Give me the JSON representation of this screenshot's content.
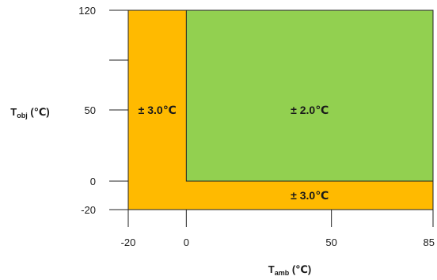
{
  "chart_data": {
    "type": "heatmap",
    "title": "",
    "xlabel": {
      "main": "T",
      "sub": "amb",
      "unit": " (℃)"
    },
    "ylabel": {
      "main": "T",
      "sub": "obj",
      "unit": " (℃)"
    },
    "xlim": [
      -20,
      85
    ],
    "ylim": [
      -20,
      120
    ],
    "xticks": [
      -20,
      0,
      50,
      85
    ],
    "yticks": [
      -20,
      0,
      50,
      120
    ],
    "xtick_labels": [
      "-20",
      "0",
      "50",
      "85"
    ],
    "ytick_labels": [
      "-20",
      "0",
      "50",
      "120"
    ],
    "grid": false,
    "regions": [
      {
        "label": "± 3.0℃",
        "color": "#FFBA00",
        "x": [
          -20,
          85
        ],
        "y": [
          -20,
          120
        ]
      },
      {
        "label": "± 2.0℃",
        "color": "#92D050",
        "x": [
          0,
          85
        ],
        "y": [
          0,
          120
        ]
      }
    ],
    "annotations": [
      {
        "text": "± 3.0℃",
        "x": -10,
        "y": 50
      },
      {
        "text": "± 2.0℃",
        "x": 42.5,
        "y": 50
      },
      {
        "text": "± 3.0℃",
        "x": 42.5,
        "y": -10
      }
    ]
  }
}
